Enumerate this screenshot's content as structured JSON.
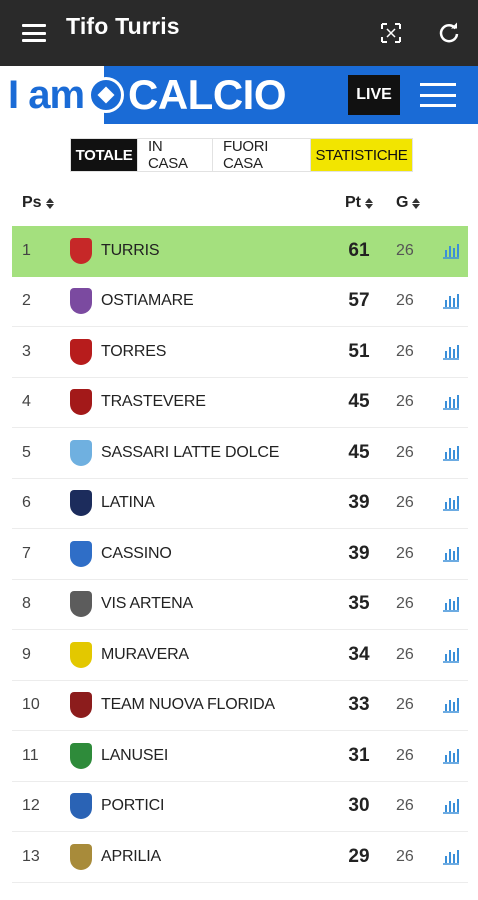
{
  "app": {
    "title": "Tifo Turris"
  },
  "brand": {
    "prefix": "I am",
    "name": "CALCIO",
    "live_label": "LIVE"
  },
  "tabs": [
    {
      "label": "TOTALE",
      "active": true
    },
    {
      "label": "IN CASA",
      "active": false
    },
    {
      "label": "FUORI CASA",
      "active": false
    },
    {
      "label": "STATISTICHE",
      "active": false
    }
  ],
  "columns": {
    "pos": "Ps",
    "points": "Pt",
    "played": "G"
  },
  "colors": {
    "highlight": "#a4e07e",
    "brand_blue": "#1a6bd6",
    "tab_yellow": "#f2e500"
  },
  "standings": [
    {
      "pos": "1",
      "team": "TURRIS",
      "pts": "61",
      "g": "26",
      "crest": "#c62828"
    },
    {
      "pos": "2",
      "team": "OSTIAMARE",
      "pts": "57",
      "g": "26",
      "crest": "#7b4aa0"
    },
    {
      "pos": "3",
      "team": "TORRES",
      "pts": "51",
      "g": "26",
      "crest": "#b71c1c"
    },
    {
      "pos": "4",
      "team": "TRASTEVERE",
      "pts": "45",
      "g": "26",
      "crest": "#a31919"
    },
    {
      "pos": "5",
      "team": "SASSARI LATTE DOLCE",
      "pts": "45",
      "g": "26",
      "crest": "#6fb0e0"
    },
    {
      "pos": "6",
      "team": "LATINA",
      "pts": "39",
      "g": "26",
      "crest": "#1c2c5c"
    },
    {
      "pos": "7",
      "team": "CASSINO",
      "pts": "39",
      "g": "26",
      "crest": "#2f6ec7"
    },
    {
      "pos": "8",
      "team": "VIS ARTENA",
      "pts": "35",
      "g": "26",
      "crest": "#5c5c5c"
    },
    {
      "pos": "9",
      "team": "MURAVERA",
      "pts": "34",
      "g": "26",
      "crest": "#e3c800"
    },
    {
      "pos": "10",
      "team": "TEAM NUOVA FLORIDA",
      "pts": "33",
      "g": "26",
      "crest": "#8c1c1c"
    },
    {
      "pos": "11",
      "team": "LANUSEI",
      "pts": "31",
      "g": "26",
      "crest": "#2e8b3a"
    },
    {
      "pos": "12",
      "team": "PORTICI",
      "pts": "30",
      "g": "26",
      "crest": "#2a63b5"
    },
    {
      "pos": "13",
      "team": "APRILIA",
      "pts": "29",
      "g": "26",
      "crest": "#a88b3a"
    }
  ]
}
